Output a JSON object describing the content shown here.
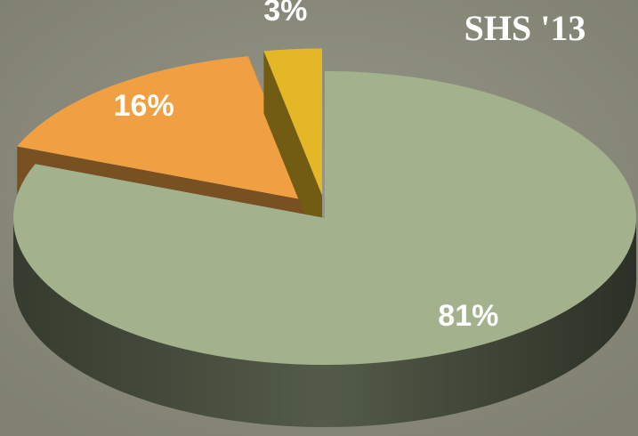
{
  "chart_data": {
    "type": "pie",
    "title": "SHS '13",
    "values": [
      81,
      16,
      3
    ],
    "value_labels": [
      "81%",
      "16%",
      "3%"
    ],
    "colors": [
      "#a3b28d",
      "#f0a043",
      "#e4b727"
    ],
    "explode": [
      0,
      1,
      1
    ],
    "three_d": true
  }
}
